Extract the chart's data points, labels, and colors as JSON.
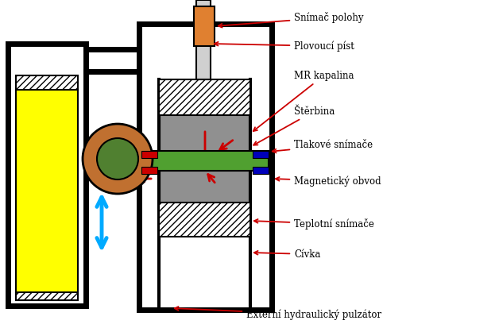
{
  "labels": {
    "snimac_polohy": "Snímač polohy",
    "plovouci_pist": "Plovoucí píst",
    "mr_kapalina": "MR kapalina",
    "sterbina": "Štěrbina",
    "tlakove_snimace": "Tlakové snímače",
    "magneticky_obvod": "Magnetický obvod",
    "teplotni_snimace": "Teplotní snímače",
    "civka": "Cívka",
    "externi": "Externí hydraulický pulzátor"
  },
  "colors": {
    "black": "#000000",
    "white": "#ffffff",
    "gray_fill": "#909090",
    "yellow": "#ffff00",
    "orange_sensor": "#e08030",
    "green": "#50a030",
    "brown_ring_outer": "#c07030",
    "green_ring_inner": "#508030",
    "blue_arrow": "#00aaff",
    "red": "#cc0000",
    "blue_sensor": "#0000bb"
  }
}
